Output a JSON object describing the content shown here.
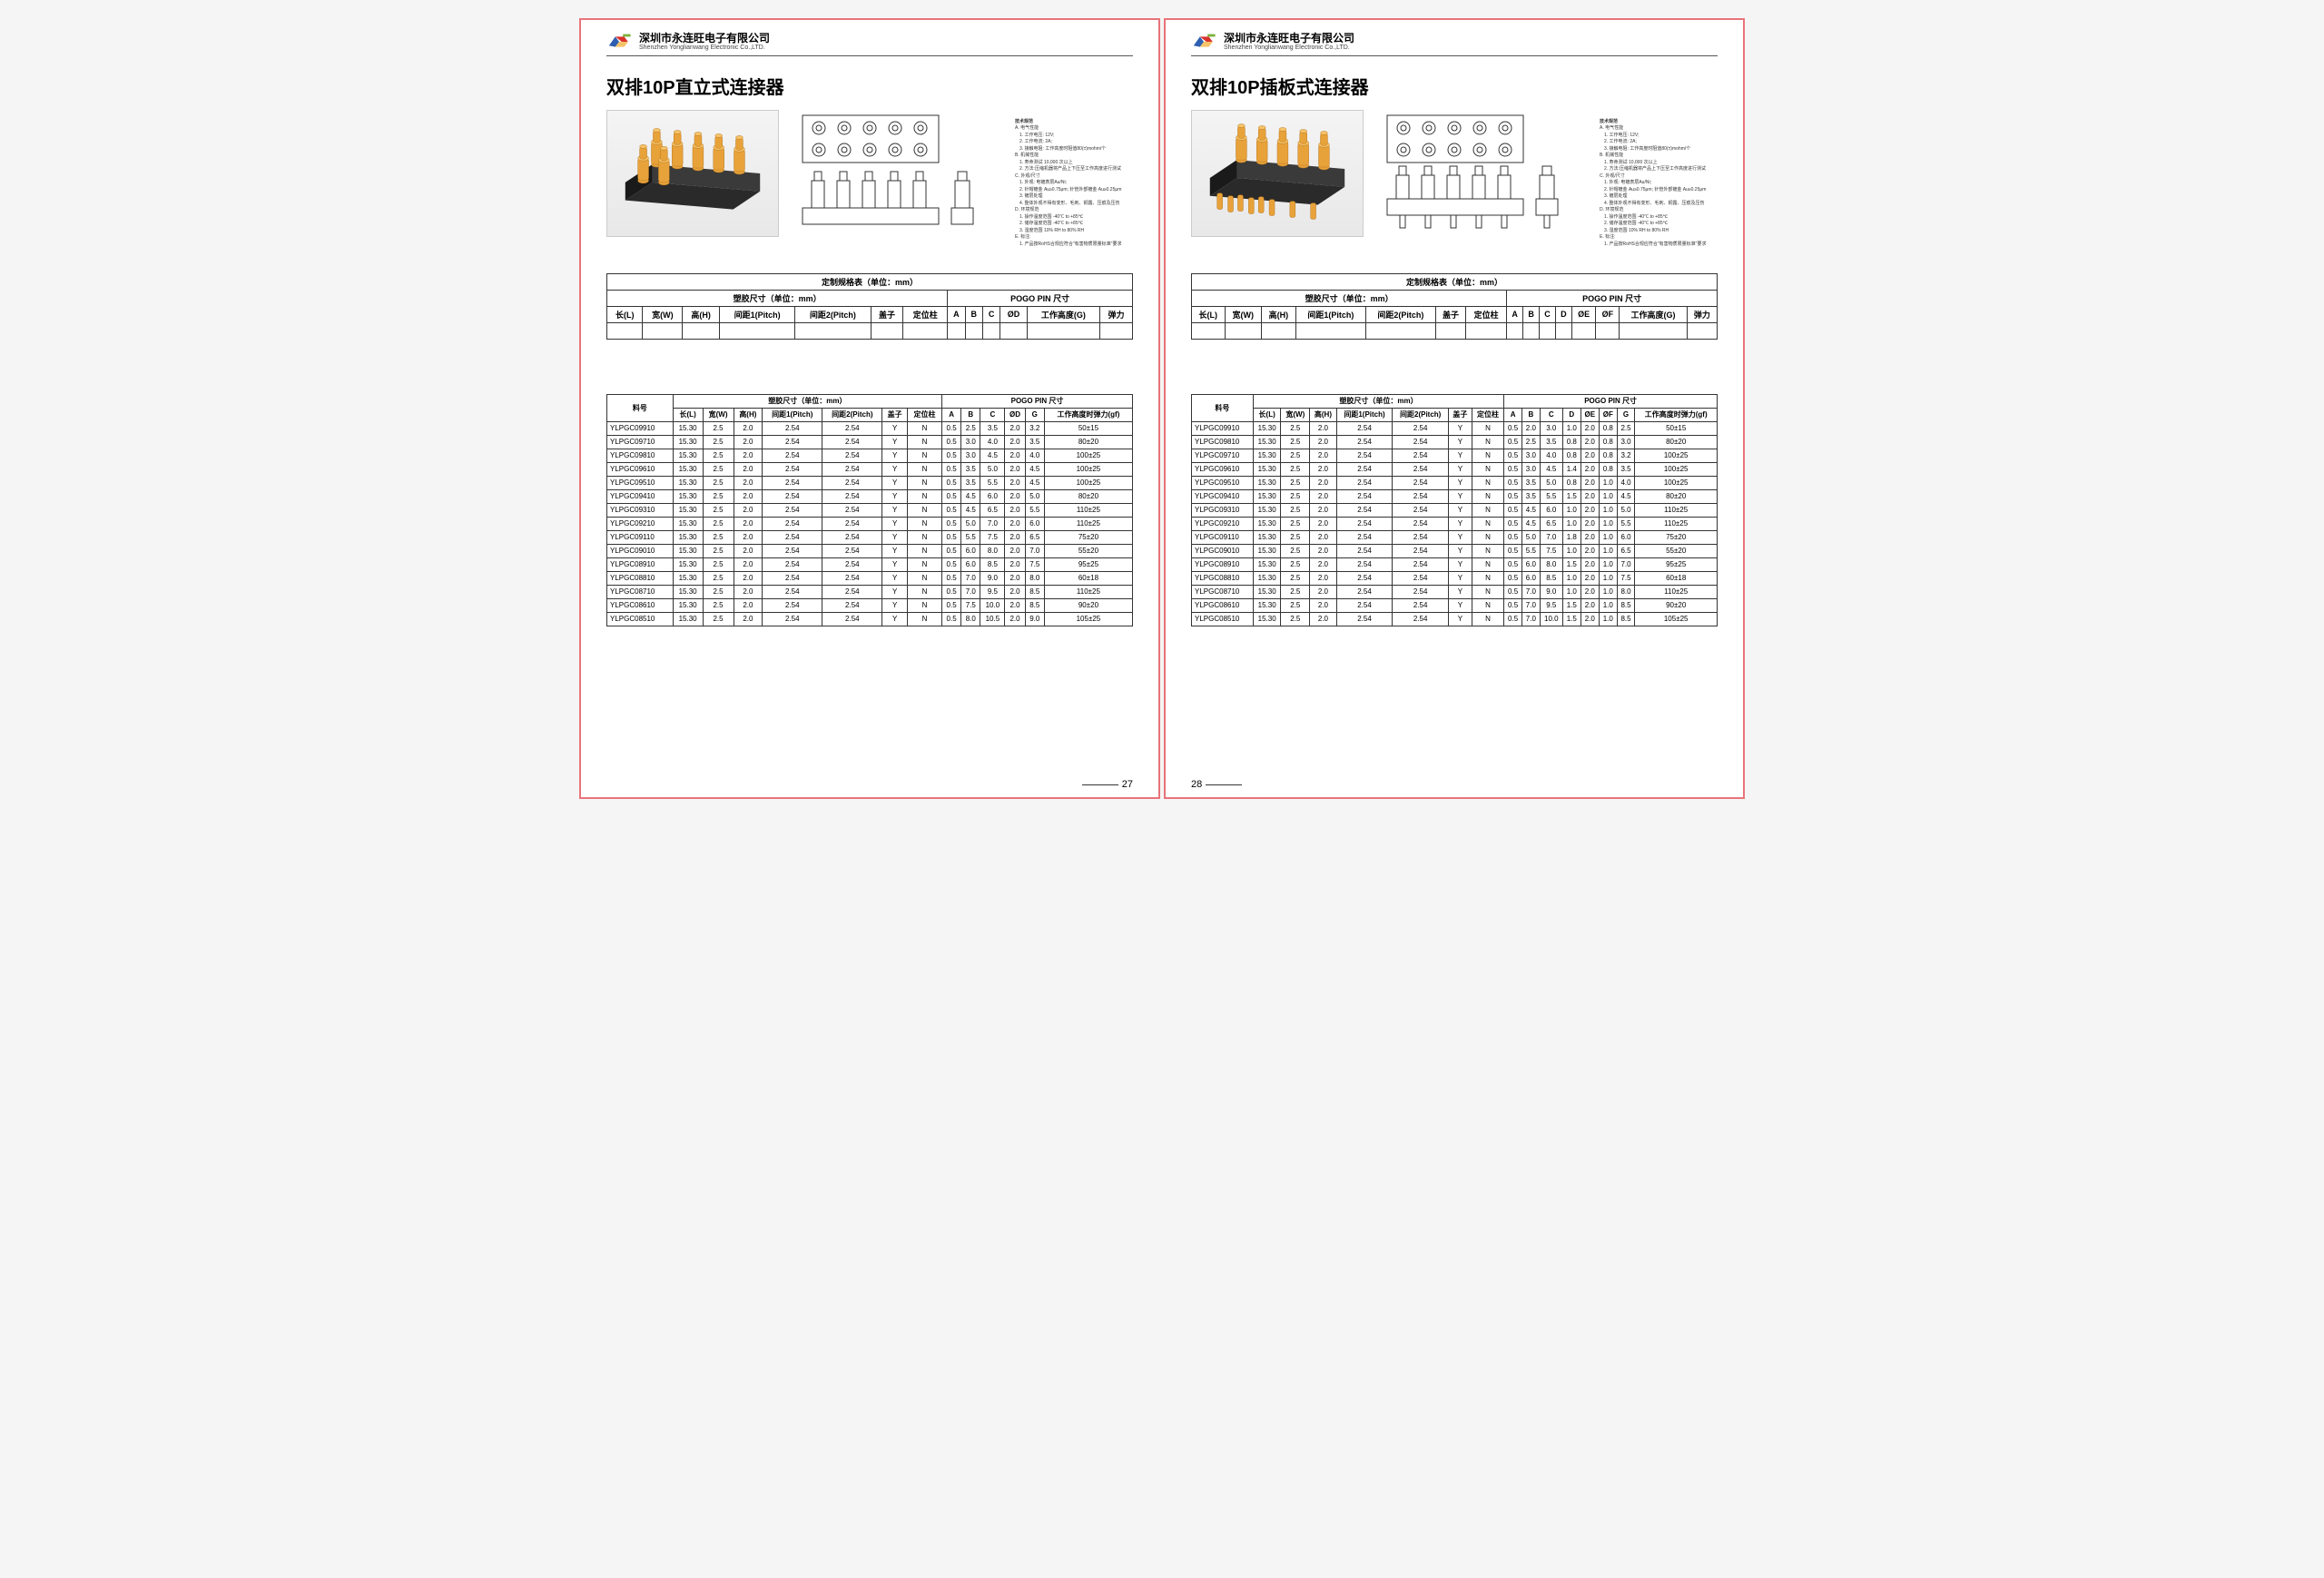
{
  "company": {
    "cn": "深圳市永连旺电子有限公司",
    "en": "Shenzhen Yonglianwang Electronic Co.,LTD."
  },
  "left": {
    "title": "双排10P直立式连接器",
    "spec_caption": "定制规格表（单位：mm）",
    "spec_group1": "塑胶尺寸（单位：mm）",
    "spec_group2": "POGO PIN 尺寸",
    "spec_cols": [
      "长(L)",
      "宽(W)",
      "高(H)",
      "间距1(Pitch)",
      "间距2(Pitch)",
      "盖子",
      "定位柱",
      "A",
      "B",
      "C",
      "ØD",
      "工作高度(G)",
      "弹力"
    ],
    "data_group1": "塑胶尺寸（单位：mm）",
    "data_group2": "POGO PIN 尺寸",
    "data_cols": [
      "料号",
      "长(L)",
      "宽(W)",
      "高(H)",
      "间距1(Pitch)",
      "间距2(Pitch)",
      "盖子",
      "定位柱",
      "A",
      "B",
      "C",
      "ØD",
      "G",
      "工作高度时弹力(gf)"
    ],
    "rows": [
      [
        "YLPGC09910",
        "15.30",
        "2.5",
        "2.0",
        "2.54",
        "2.54",
        "Y",
        "N",
        "0.5",
        "2.5",
        "3.5",
        "2.0",
        "3.2",
        "50±15"
      ],
      [
        "YLPGC09710",
        "15.30",
        "2.5",
        "2.0",
        "2.54",
        "2.54",
        "Y",
        "N",
        "0.5",
        "3.0",
        "4.0",
        "2.0",
        "3.5",
        "80±20"
      ],
      [
        "YLPGC09810",
        "15.30",
        "2.5",
        "2.0",
        "2.54",
        "2.54",
        "Y",
        "N",
        "0.5",
        "3.0",
        "4.5",
        "2.0",
        "4.0",
        "100±25"
      ],
      [
        "YLPGC09610",
        "15.30",
        "2.5",
        "2.0",
        "2.54",
        "2.54",
        "Y",
        "N",
        "0.5",
        "3.5",
        "5.0",
        "2.0",
        "4.5",
        "100±25"
      ],
      [
        "YLPGC09510",
        "15.30",
        "2.5",
        "2.0",
        "2.54",
        "2.54",
        "Y",
        "N",
        "0.5",
        "3.5",
        "5.5",
        "2.0",
        "4.5",
        "100±25"
      ],
      [
        "YLPGC09410",
        "15.30",
        "2.5",
        "2.0",
        "2.54",
        "2.54",
        "Y",
        "N",
        "0.5",
        "4.5",
        "6.0",
        "2.0",
        "5.0",
        "80±20"
      ],
      [
        "YLPGC09310",
        "15.30",
        "2.5",
        "2.0",
        "2.54",
        "2.54",
        "Y",
        "N",
        "0.5",
        "4.5",
        "6.5",
        "2.0",
        "5.5",
        "110±25"
      ],
      [
        "YLPGC09210",
        "15.30",
        "2.5",
        "2.0",
        "2.54",
        "2.54",
        "Y",
        "N",
        "0.5",
        "5.0",
        "7.0",
        "2.0",
        "6.0",
        "110±25"
      ],
      [
        "YLPGC09110",
        "15.30",
        "2.5",
        "2.0",
        "2.54",
        "2.54",
        "Y",
        "N",
        "0.5",
        "5.5",
        "7.5",
        "2.0",
        "6.5",
        "75±20"
      ],
      [
        "YLPGC09010",
        "15.30",
        "2.5",
        "2.0",
        "2.54",
        "2.54",
        "Y",
        "N",
        "0.5",
        "6.0",
        "8.0",
        "2.0",
        "7.0",
        "55±20"
      ],
      [
        "YLPGC08910",
        "15.30",
        "2.5",
        "2.0",
        "2.54",
        "2.54",
        "Y",
        "N",
        "0.5",
        "6.0",
        "8.5",
        "2.0",
        "7.5",
        "95±25"
      ],
      [
        "YLPGC08810",
        "15.30",
        "2.5",
        "2.0",
        "2.54",
        "2.54",
        "Y",
        "N",
        "0.5",
        "7.0",
        "9.0",
        "2.0",
        "8.0",
        "60±18"
      ],
      [
        "YLPGC08710",
        "15.30",
        "2.5",
        "2.0",
        "2.54",
        "2.54",
        "Y",
        "N",
        "0.5",
        "7.0",
        "9.5",
        "2.0",
        "8.5",
        "110±25"
      ],
      [
        "YLPGC08610",
        "15.30",
        "2.5",
        "2.0",
        "2.54",
        "2.54",
        "Y",
        "N",
        "0.5",
        "7.5",
        "10.0",
        "2.0",
        "8.5",
        "90±20"
      ],
      [
        "YLPGC08510",
        "15.30",
        "2.5",
        "2.0",
        "2.54",
        "2.54",
        "Y",
        "N",
        "0.5",
        "8.0",
        "10.5",
        "2.0",
        "9.0",
        "105±25"
      ]
    ],
    "pagenum": "27"
  },
  "right": {
    "title": "双排10P插板式连接器",
    "spec_caption": "定制规格表（单位：mm）",
    "spec_group1": "塑胶尺寸（单位：mm）",
    "spec_group2": "POGO PIN 尺寸",
    "spec_cols": [
      "长(L)",
      "宽(W)",
      "高(H)",
      "间距1(Pitch)",
      "间距2(Pitch)",
      "盖子",
      "定位柱",
      "A",
      "B",
      "C",
      "D",
      "ØE",
      "ØF",
      "工作高度(G)",
      "弹力"
    ],
    "data_group1": "塑胶尺寸（单位：mm）",
    "data_group2": "POGO PIN 尺寸",
    "data_cols": [
      "料号",
      "长(L)",
      "宽(W)",
      "高(H)",
      "间距1(Pitch)",
      "间距2(Pitch)",
      "盖子",
      "定位柱",
      "A",
      "B",
      "C",
      "D",
      "ØE",
      "ØF",
      "G",
      "工作高度时弹力(gf)"
    ],
    "rows": [
      [
        "YLPGC09910",
        "15.30",
        "2.5",
        "2.0",
        "2.54",
        "2.54",
        "Y",
        "N",
        "0.5",
        "2.0",
        "3.0",
        "1.0",
        "2.0",
        "0.8",
        "2.5",
        "50±15"
      ],
      [
        "YLPGC09810",
        "15.30",
        "2.5",
        "2.0",
        "2.54",
        "2.54",
        "Y",
        "N",
        "0.5",
        "2.5",
        "3.5",
        "0.8",
        "2.0",
        "0.8",
        "3.0",
        "80±20"
      ],
      [
        "YLPGC09710",
        "15.30",
        "2.5",
        "2.0",
        "2.54",
        "2.54",
        "Y",
        "N",
        "0.5",
        "3.0",
        "4.0",
        "0.8",
        "2.0",
        "0.8",
        "3.2",
        "100±25"
      ],
      [
        "YLPGC09610",
        "15.30",
        "2.5",
        "2.0",
        "2.54",
        "2.54",
        "Y",
        "N",
        "0.5",
        "3.0",
        "4.5",
        "1.4",
        "2.0",
        "0.8",
        "3.5",
        "100±25"
      ],
      [
        "YLPGC09510",
        "15.30",
        "2.5",
        "2.0",
        "2.54",
        "2.54",
        "Y",
        "N",
        "0.5",
        "3.5",
        "5.0",
        "0.8",
        "2.0",
        "1.0",
        "4.0",
        "100±25"
      ],
      [
        "YLPGC09410",
        "15.30",
        "2.5",
        "2.0",
        "2.54",
        "2.54",
        "Y",
        "N",
        "0.5",
        "3.5",
        "5.5",
        "1.5",
        "2.0",
        "1.0",
        "4.5",
        "80±20"
      ],
      [
        "YLPGC09310",
        "15.30",
        "2.5",
        "2.0",
        "2.54",
        "2.54",
        "Y",
        "N",
        "0.5",
        "4.5",
        "6.0",
        "1.0",
        "2.0",
        "1.0",
        "5.0",
        "110±25"
      ],
      [
        "YLPGC09210",
        "15.30",
        "2.5",
        "2.0",
        "2.54",
        "2.54",
        "Y",
        "N",
        "0.5",
        "4.5",
        "6.5",
        "1.0",
        "2.0",
        "1.0",
        "5.5",
        "110±25"
      ],
      [
        "YLPGC09110",
        "15.30",
        "2.5",
        "2.0",
        "2.54",
        "2.54",
        "Y",
        "N",
        "0.5",
        "5.0",
        "7.0",
        "1.8",
        "2.0",
        "1.0",
        "6.0",
        "75±20"
      ],
      [
        "YLPGC09010",
        "15.30",
        "2.5",
        "2.0",
        "2.54",
        "2.54",
        "Y",
        "N",
        "0.5",
        "5.5",
        "7.5",
        "1.0",
        "2.0",
        "1.0",
        "6.5",
        "55±20"
      ],
      [
        "YLPGC08910",
        "15.30",
        "2.5",
        "2.0",
        "2.54",
        "2.54",
        "Y",
        "N",
        "0.5",
        "6.0",
        "8.0",
        "1.5",
        "2.0",
        "1.0",
        "7.0",
        "95±25"
      ],
      [
        "YLPGC08810",
        "15.30",
        "2.5",
        "2.0",
        "2.54",
        "2.54",
        "Y",
        "N",
        "0.5",
        "6.0",
        "8.5",
        "1.0",
        "2.0",
        "1.0",
        "7.5",
        "60±18"
      ],
      [
        "YLPGC08710",
        "15.30",
        "2.5",
        "2.0",
        "2.54",
        "2.54",
        "Y",
        "N",
        "0.5",
        "7.0",
        "9.0",
        "1.0",
        "2.0",
        "1.0",
        "8.0",
        "110±25"
      ],
      [
        "YLPGC08610",
        "15.30",
        "2.5",
        "2.0",
        "2.54",
        "2.54",
        "Y",
        "N",
        "0.5",
        "7.0",
        "9.5",
        "1.5",
        "2.0",
        "1.0",
        "8.5",
        "90±20"
      ],
      [
        "YLPGC08510",
        "15.30",
        "2.5",
        "2.0",
        "2.54",
        "2.54",
        "Y",
        "N",
        "0.5",
        "7.0",
        "10.0",
        "1.5",
        "2.0",
        "1.0",
        "8.5",
        "105±25"
      ]
    ],
    "pagenum": "28"
  },
  "notes": {
    "heading": "技术规范",
    "lines": [
      "A. 电气性能",
      "　1. 工作电压: 12V;",
      "　2. 工作电流: 2A;",
      "　3. 接触电阻: 工作高度时阻值80(±)mohm/个",
      "B. 机械性能",
      "　1. 寿命测试 10,000 次以上",
      "　2. 方法:压缩机器将产品上下压至工作高度进行测试",
      "C. 外观/尺寸",
      "　1. 外观: 电镀表层Au/Ni;",
      "　2. 针帽镀金 Au≥0.75μm; 针管外部镀金 Au≥0.25μm",
      "　3. 镀层处理",
      "　4. 整体外观不得有变形、毛刺、铜露、压痕及压伤",
      "D. 环境规范",
      "　1. 操作温度范围 -40℃ to +85℃",
      "　2. 储存温度范围 -40℃ to +85℃",
      "　3. 湿度范围 10% RH to 80% RH",
      "E. 标注:",
      "　1. 产品按RoHS合规应符合\"有害物质限量标准\"要求"
    ]
  },
  "colors": {
    "page_border": "#e8747a",
    "pin_gold": "#e8a23a",
    "pin_gold_hi": "#f6c368",
    "housing": "#2a2a2a",
    "render_bg1": "#f4f4f4",
    "render_bg2": "#e8e8e8",
    "logo_red": "#d9322e",
    "logo_blue": "#2e5fb0",
    "logo_green": "#7bb23a"
  }
}
